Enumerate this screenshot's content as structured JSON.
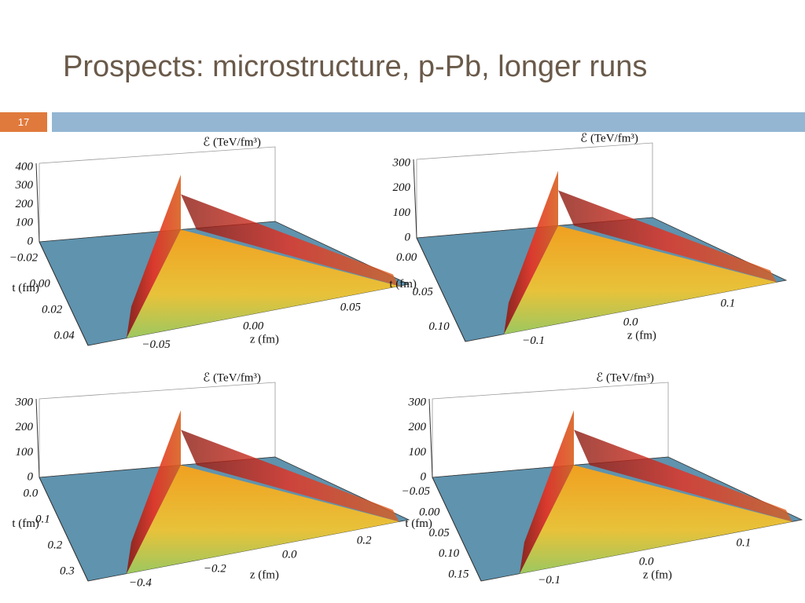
{
  "title": "Prospects: microstructure, p-Pb, longer runs",
  "slide_number": "17",
  "plots": [
    {
      "z_axis_label": "ℰ (TeV/fm³)",
      "z_ticks": [
        "400",
        "300",
        "200",
        "100",
        "0"
      ],
      "t_axis_label": "t (fm)",
      "t_ticks": [
        "−0.02",
        "0.00",
        "0.02",
        "0.04"
      ],
      "x_axis_label": "z (fm)",
      "x_ticks": [
        "−0.05",
        "0.00",
        "0.05"
      ]
    },
    {
      "z_axis_label": "ℰ (TeV/fm³)",
      "z_ticks": [
        "300",
        "200",
        "100",
        "0"
      ],
      "t_axis_label": "t (fm)",
      "t_ticks": [
        "0.00",
        "0.05",
        "0.10"
      ],
      "x_axis_label": "z (fm)",
      "x_ticks": [
        "−0.1",
        "0.0",
        "0.1"
      ]
    },
    {
      "z_axis_label": "ℰ (TeV/fm³)",
      "z_ticks": [
        "300",
        "200",
        "100",
        "0"
      ],
      "t_axis_label": "t (fm)",
      "t_ticks": [
        "0.0",
        "0.1",
        "0.2",
        "0.3"
      ],
      "x_axis_label": "z (fm)",
      "x_ticks": [
        "−0.4",
        "−0.2",
        "0.0",
        "0.2"
      ]
    },
    {
      "z_axis_label": "ℰ (TeV/fm³)",
      "z_ticks": [
        "300",
        "200",
        "100",
        "0"
      ],
      "t_axis_label": "t (fm)",
      "t_ticks": [
        "−0.05",
        "0.00",
        "0.05",
        "0.10",
        "0.15"
      ],
      "x_axis_label": "z (fm)",
      "x_ticks": [
        "−0.1",
        "0.0",
        "0.1"
      ]
    }
  ]
}
